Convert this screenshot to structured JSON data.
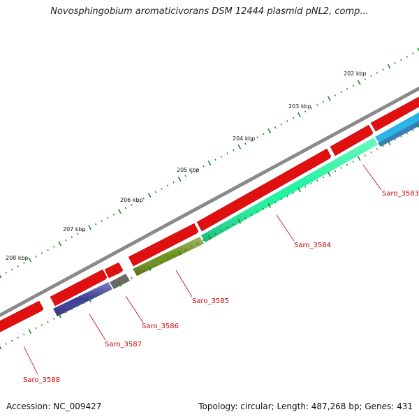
{
  "title": "Novosphingobium aromaticivorans DSM 12444 plasmid pNL2, comp...",
  "footer": {
    "accession": "Accession: NC_009427",
    "summary": "Topology: circular; Length: 487,268 bp; Genes: 431"
  },
  "ticks": [
    {
      "label": "202 kbp"
    },
    {
      "label": "203 kbp"
    },
    {
      "label": "204 kbp"
    },
    {
      "label": "205 kbp"
    },
    {
      "label": "206 kbp"
    },
    {
      "label": "207 kbp"
    },
    {
      "label": "208 kbp"
    }
  ],
  "genes": [
    {
      "name": "Saro_3583",
      "color": "#2bb5e6"
    },
    {
      "name": "Saro_3584",
      "color": "#1ff2a0"
    },
    {
      "name": "Saro_3585",
      "color": "#6f8e1b"
    },
    {
      "name": "Saro_3586",
      "color": "#6a6a6a"
    },
    {
      "name": "Saro_3587",
      "color": "#3b3b9a"
    },
    {
      "name": "Saro_3588",
      "color": "#e01010"
    }
  ],
  "colors": {
    "backbone": "#8a8a8a",
    "cds_forward": "#e01010",
    "tick": "#1a8a1a",
    "label": "#cc0000"
  }
}
